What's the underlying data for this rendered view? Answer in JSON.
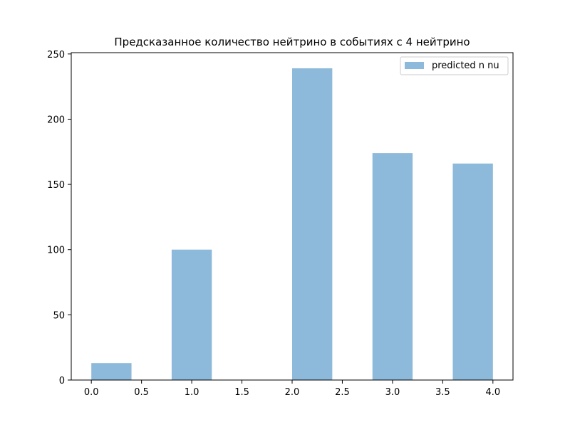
{
  "chart_data": {
    "type": "bar",
    "title": "Предсказанное количество нейтрино в событиях с 4 нейтрино",
    "xlabel": "",
    "ylabel": "",
    "xlim": [
      -0.2,
      4.2
    ],
    "ylim": [
      0,
      251
    ],
    "x_ticks": [
      0.0,
      0.5,
      1.0,
      1.5,
      2.0,
      2.5,
      3.0,
      3.5,
      4.0
    ],
    "x_tick_labels": [
      "0.0",
      "0.5",
      "1.0",
      "1.5",
      "2.0",
      "2.5",
      "3.0",
      "3.5",
      "4.0"
    ],
    "y_ticks": [
      0,
      50,
      100,
      150,
      200,
      250
    ],
    "y_tick_labels": [
      "0",
      "50",
      "100",
      "150",
      "200",
      "250"
    ],
    "grid": false,
    "legend_position": "top-right",
    "bin_edges": [
      0.0,
      0.4,
      0.8,
      1.2,
      1.6,
      2.0,
      2.4,
      2.8,
      3.2,
      3.6,
      4.0
    ],
    "series": [
      {
        "name": "predicted n nu",
        "color": "#8db9da",
        "values": [
          13,
          0,
          100,
          0,
          0,
          239,
          0,
          174,
          0,
          166
        ]
      }
    ]
  }
}
